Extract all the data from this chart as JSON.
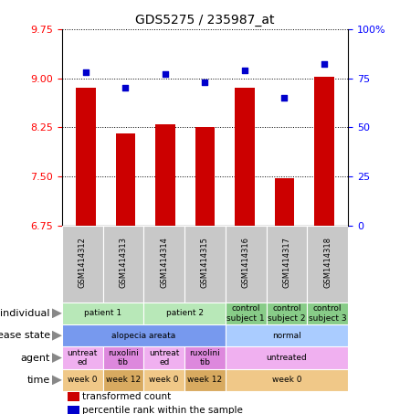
{
  "title": "GDS5275 / 235987_at",
  "samples": [
    "GSM1414312",
    "GSM1414313",
    "GSM1414314",
    "GSM1414315",
    "GSM1414316",
    "GSM1414317",
    "GSM1414318"
  ],
  "bar_values": [
    8.85,
    8.15,
    8.3,
    8.25,
    8.85,
    7.48,
    9.02
  ],
  "dot_values": [
    78,
    70,
    77,
    73,
    79,
    65,
    82
  ],
  "ylim_left": [
    6.75,
    9.75
  ],
  "ylim_right": [
    0,
    100
  ],
  "yticks_left": [
    6.75,
    7.5,
    8.25,
    9.0,
    9.75
  ],
  "yticks_right": [
    0,
    25,
    50,
    75,
    100
  ],
  "bar_color": "#cc0000",
  "dot_color": "#0000cc",
  "bar_width": 0.5,
  "dot_size": 25,
  "sample_row_bg": "#c8c8c8",
  "rows": [
    {
      "label": "individual",
      "cells": [
        {
          "text": "patient 1",
          "span": 2,
          "color": "#b8e8b8"
        },
        {
          "text": "patient 2",
          "span": 2,
          "color": "#b8e8b8"
        },
        {
          "text": "control\nsubject 1",
          "span": 1,
          "color": "#88cc88"
        },
        {
          "text": "control\nsubject 2",
          "span": 1,
          "color": "#88cc88"
        },
        {
          "text": "control\nsubject 3",
          "span": 1,
          "color": "#88cc88"
        }
      ]
    },
    {
      "label": "disease state",
      "cells": [
        {
          "text": "alopecia areata",
          "span": 4,
          "color": "#7799ee"
        },
        {
          "text": "normal",
          "span": 3,
          "color": "#aaccff"
        }
      ]
    },
    {
      "label": "agent",
      "cells": [
        {
          "text": "untreat\ned",
          "span": 1,
          "color": "#f0b0f0"
        },
        {
          "text": "ruxolini\ntib",
          "span": 1,
          "color": "#dd88dd"
        },
        {
          "text": "untreat\ned",
          "span": 1,
          "color": "#f0b0f0"
        },
        {
          "text": "ruxolini\ntib",
          "span": 1,
          "color": "#dd88dd"
        },
        {
          "text": "untreated",
          "span": 3,
          "color": "#f0b0f0"
        }
      ]
    },
    {
      "label": "time",
      "cells": [
        {
          "text": "week 0",
          "span": 1,
          "color": "#f0c888"
        },
        {
          "text": "week 12",
          "span": 1,
          "color": "#d8aa60"
        },
        {
          "text": "week 0",
          "span": 1,
          "color": "#f0c888"
        },
        {
          "text": "week 12",
          "span": 1,
          "color": "#d8aa60"
        },
        {
          "text": "week 0",
          "span": 3,
          "color": "#f0c888"
        }
      ]
    }
  ],
  "legend": [
    {
      "color": "#cc0000",
      "label": "transformed count"
    },
    {
      "color": "#0000cc",
      "label": "percentile rank within the sample"
    }
  ]
}
